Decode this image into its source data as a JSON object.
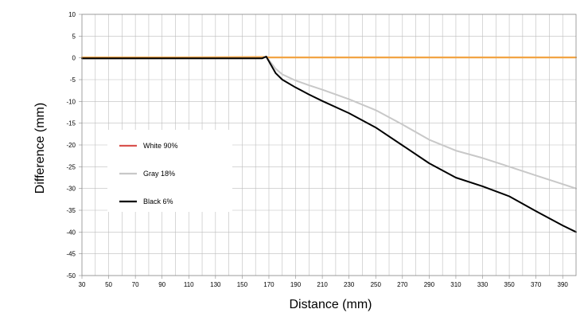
{
  "chart_data": {
    "type": "line",
    "xlabel": "Distance (mm)",
    "ylabel": "Difference (mm)",
    "xlim": [
      30,
      400
    ],
    "ylim": [
      -50,
      10
    ],
    "x_ticks": [
      30,
      50,
      70,
      90,
      110,
      130,
      150,
      170,
      190,
      210,
      230,
      250,
      270,
      290,
      310,
      330,
      350,
      370,
      390
    ],
    "y_ticks": [
      10,
      5,
      0,
      -5,
      -10,
      -15,
      -20,
      -25,
      -30,
      -35,
      -40,
      -45,
      -50
    ],
    "grid": true,
    "legend_position": "left-middle",
    "series": [
      {
        "name": "White 90%",
        "color": "#f2a444",
        "legend_color": "#d9534f",
        "x": [
          30,
          100,
          165,
          168,
          170,
          200,
          300,
          400
        ],
        "y": [
          0.1,
          0.1,
          0.2,
          0.2,
          0.1,
          0.1,
          0.1,
          0.1
        ]
      },
      {
        "name": "Gray 18%",
        "color": "#c8c8c8",
        "legend_color": "#c8c8c8",
        "x": [
          30,
          165,
          168,
          170,
          175,
          180,
          190,
          200,
          210,
          230,
          250,
          270,
          290,
          310,
          330,
          350,
          370,
          390,
          400
        ],
        "y": [
          -0.2,
          -0.1,
          0.2,
          -0.5,
          -2.5,
          -3.8,
          -5.2,
          -6.3,
          -7.3,
          -9.5,
          -12,
          -15.3,
          -18.8,
          -21.3,
          -23,
          -25,
          -27,
          -29,
          -30
        ]
      },
      {
        "name": "Black 6%",
        "color": "#000000",
        "legend_color": "#000000",
        "x": [
          30,
          165,
          168,
          170,
          175,
          180,
          190,
          200,
          210,
          230,
          250,
          270,
          290,
          310,
          330,
          350,
          370,
          390,
          400
        ],
        "y": [
          -0.1,
          -0.1,
          0.3,
          -0.8,
          -3.5,
          -5,
          -6.8,
          -8.4,
          -9.9,
          -12.7,
          -16,
          -20.1,
          -24.2,
          -27.5,
          -29.5,
          -31.8,
          -35.2,
          -38.5,
          -40
        ]
      }
    ]
  }
}
